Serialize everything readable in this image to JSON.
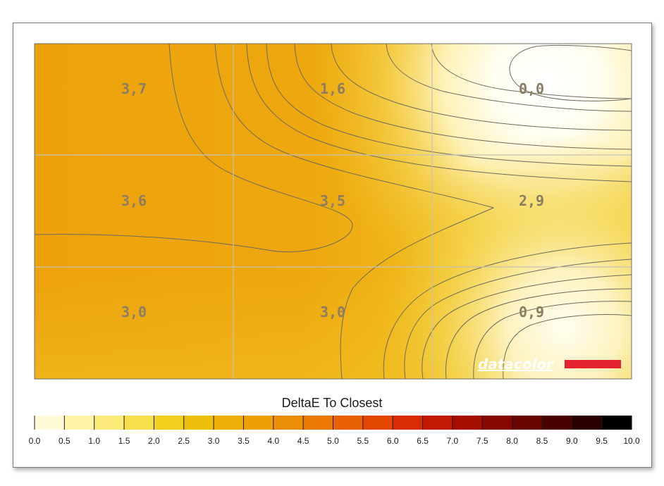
{
  "chart_data": {
    "type": "heatmap",
    "rows": 3,
    "cols": 3,
    "grid": true,
    "cells": [
      [
        "3,7",
        "1,6",
        "0,0"
      ],
      [
        "3,6",
        "3,5",
        "2,9"
      ],
      [
        "3,0",
        "3,0",
        "0,9"
      ]
    ],
    "values": [
      [
        3.7,
        1.6,
        0.0
      ],
      [
        3.6,
        3.5,
        2.9
      ],
      [
        3.0,
        3.0,
        0.9
      ]
    ],
    "watermark": "datacolor",
    "legend_title": "DeltaE To Closest",
    "scale_ticks": [
      "0.0",
      "0.5",
      "1.0",
      "1.5",
      "2.0",
      "2.5",
      "3.0",
      "3.5",
      "4.0",
      "4.5",
      "5.0",
      "5.5",
      "6.0",
      "6.5",
      "7.0",
      "7.5",
      "8.0",
      "8.5",
      "9.0",
      "9.5",
      "10.0"
    ],
    "scale_range": [
      0,
      10
    ],
    "scale_colors": [
      "#fffff8",
      "#fffbd6",
      "#fff5a8",
      "#fbe978",
      "#f6df4a",
      "#f0cf1e",
      "#ebbf0a",
      "#eeaf08",
      "#eda006",
      "#ec8e05",
      "#ea7a04",
      "#e86003",
      "#e44702",
      "#d82c02",
      "#c11a01",
      "#a50e00",
      "#870700",
      "#680400",
      "#4a0200",
      "#2c0100",
      "#000000"
    ]
  }
}
